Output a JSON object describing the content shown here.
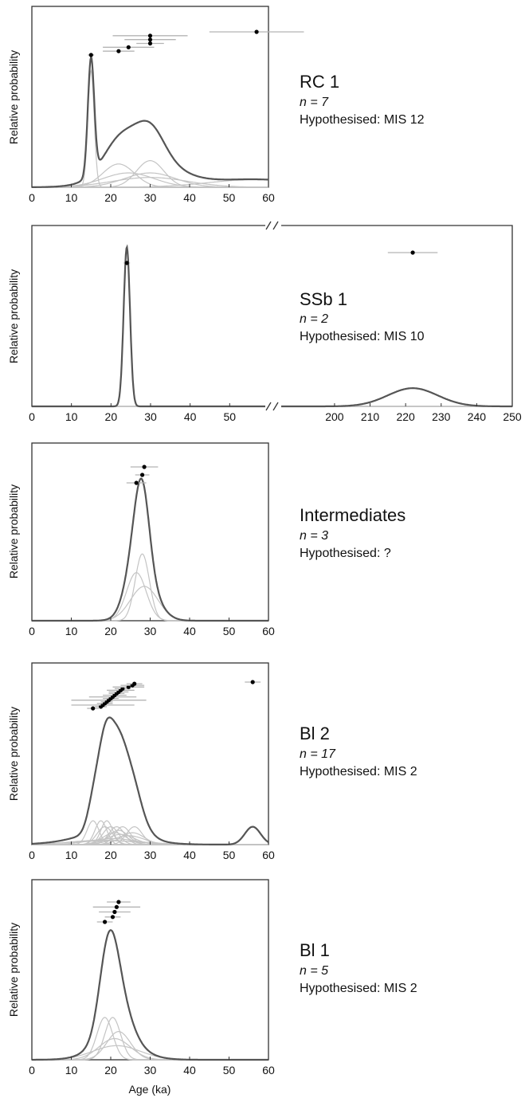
{
  "chart_data": [
    {
      "type": "line",
      "id": "rc1",
      "title": "RC 1",
      "n_label": "n = 7",
      "hypothesis": "Hypothesised: MIS 12",
      "ylabel": "Relative probability",
      "xlabel": "",
      "xlim": [
        0,
        60
      ],
      "xticks": [
        0,
        10,
        20,
        30,
        40,
        50,
        60
      ],
      "ages": [
        {
          "age": 15,
          "err": 0.8
        },
        {
          "age": 22,
          "err": 4
        },
        {
          "age": 24.5,
          "err": 6.5
        },
        {
          "age": 30,
          "err": 3.5
        },
        {
          "age": 30,
          "err": 6.5
        },
        {
          "age": 30,
          "err": 9.5
        },
        {
          "age": 57,
          "err": 12
        }
      ],
      "sum_peak_ratio": 0.72
    },
    {
      "type": "line",
      "id": "ssb1",
      "title": "SSb 1",
      "n_label": "n = 2",
      "hypothesis": "Hypothesised: MIS 10",
      "ylabel": "Relative probability",
      "xlabel": "",
      "broken_axis": true,
      "xlim_left": [
        0,
        59
      ],
      "xlim_right": [
        185,
        250
      ],
      "xticks_left": [
        0,
        10,
        20,
        30,
        40,
        50
      ],
      "xticks_right": [
        200,
        210,
        220,
        230,
        240,
        250
      ],
      "ages": [
        {
          "age": 24,
          "err": 0.8
        },
        {
          "age": 222,
          "err": 7
        }
      ],
      "sum_peak_ratio": 0.88
    },
    {
      "type": "line",
      "id": "intermediates",
      "title": "Intermediates",
      "n_label": "n = 3",
      "hypothesis": "Hypothesised: ?",
      "ylabel": "Relative probability",
      "xlabel": "",
      "xlim": [
        0,
        60
      ],
      "xticks": [
        0,
        10,
        20,
        30,
        40,
        50,
        60
      ],
      "ages": [
        {
          "age": 26.5,
          "err": 2.5
        },
        {
          "age": 28,
          "err": 1.8
        },
        {
          "age": 28.5,
          "err": 3.5
        }
      ],
      "sum_peak_ratio": 0.8
    },
    {
      "type": "line",
      "id": "bl2",
      "title": "Bl 2",
      "n_label": "n = 17",
      "hypothesis": "Hypothesised: MIS 2",
      "ylabel": "Relative probability",
      "xlabel": "",
      "xlim": [
        0,
        60
      ],
      "xticks": [
        0,
        10,
        20,
        30,
        40,
        50,
        60
      ],
      "ages": [
        {
          "age": 15.5,
          "err": 1.5
        },
        {
          "age": 17.5,
          "err": 1.5
        },
        {
          "age": 18,
          "err": 8
        },
        {
          "age": 18.5,
          "err": 2
        },
        {
          "age": 19,
          "err": 1.5
        },
        {
          "age": 19.5,
          "err": 9.5
        },
        {
          "age": 20,
          "err": 2
        },
        {
          "age": 20.5,
          "err": 6
        },
        {
          "age": 21,
          "err": 3
        },
        {
          "age": 21.5,
          "err": 2
        },
        {
          "age": 22,
          "err": 2.5
        },
        {
          "age": 22.5,
          "err": 3.5
        },
        {
          "age": 23,
          "err": 2
        },
        {
          "age": 24.5,
          "err": 4
        },
        {
          "age": 25.5,
          "err": 3
        },
        {
          "age": 26,
          "err": 2
        },
        {
          "age": 56,
          "err": 2
        }
      ],
      "sum_peak_ratio": 0.7
    },
    {
      "type": "line",
      "id": "bl1",
      "title": "Bl 1",
      "n_label": "n = 5",
      "hypothesis": "Hypothesised: MIS 2",
      "ylabel": "Relative probability",
      "xlabel": "Age (ka)",
      "xlim": [
        0,
        60
      ],
      "xticks": [
        0,
        10,
        20,
        30,
        40,
        50,
        60
      ],
      "ages": [
        {
          "age": 18.5,
          "err": 2
        },
        {
          "age": 20.5,
          "err": 2
        },
        {
          "age": 21,
          "err": 4
        },
        {
          "age": 21.5,
          "err": 6
        },
        {
          "age": 22,
          "err": 3
        }
      ],
      "sum_peak_ratio": 0.72
    }
  ],
  "colors": {
    "sum_curve": "#555555",
    "individual_curves": "#c4c4c4",
    "error_bars": "#b4b4b4",
    "points": "#000000",
    "frame": "#333333"
  }
}
